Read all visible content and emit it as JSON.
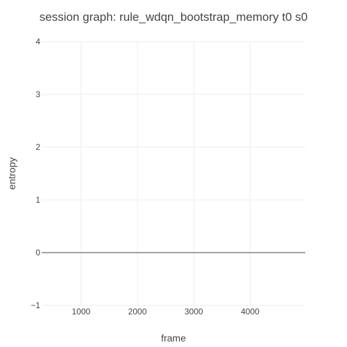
{
  "chart_data": {
    "type": "line",
    "title": "session graph: rule_wdqn_bootstrap_memory t0 s0",
    "xlabel": "frame",
    "ylabel": "entropy",
    "xlim": [
      300,
      4980
    ],
    "ylim": [
      -1,
      4
    ],
    "x_ticks": [
      1000,
      2000,
      3000,
      4000
    ],
    "x_tick_labels": [
      "1000",
      "2000",
      "3000",
      "4000"
    ],
    "y_ticks": [
      -1,
      0,
      1,
      2,
      3,
      4
    ],
    "y_tick_labels": [
      "−1",
      "0",
      "1",
      "2",
      "3",
      "4"
    ],
    "grid": true,
    "zero_line": true,
    "series": []
  }
}
